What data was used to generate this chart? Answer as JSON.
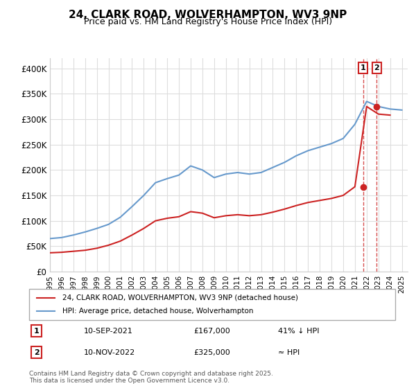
{
  "title": "24, CLARK ROAD, WOLVERHAMPTON, WV3 9NP",
  "subtitle": "Price paid vs. HM Land Registry's House Price Index (HPI)",
  "ylabel_ticks": [
    "£0",
    "£50K",
    "£100K",
    "£150K",
    "£200K",
    "£250K",
    "£300K",
    "£350K",
    "£400K"
  ],
  "ylim": [
    0,
    420000
  ],
  "xlim_start": 1995,
  "xlim_end": 2025.5,
  "legend_line1": "24, CLARK ROAD, WOLVERHAMPTON, WV3 9NP (detached house)",
  "legend_line2": "HPI: Average price, detached house, Wolverhampton",
  "transaction1_date": "10-SEP-2021",
  "transaction1_price": "£167,000",
  "transaction1_note": "41% ↓ HPI",
  "transaction2_date": "10-NOV-2022",
  "transaction2_price": "£325,000",
  "transaction2_note": "≈ HPI",
  "footnote": "Contains HM Land Registry data © Crown copyright and database right 2025.\nThis data is licensed under the Open Government Licence v3.0.",
  "hpi_color": "#6699cc",
  "price_color": "#cc2222",
  "marker1_color": "#cc2222",
  "marker2_color": "#cc2222",
  "vline_color": "#cc2222",
  "label1_bg": "#ffffff",
  "label2_bg": "#ffffff",
  "box_color": "#cc2222",
  "grid_color": "#dddddd",
  "background_color": "#ffffff",
  "hpi_years": [
    1995,
    1996,
    1997,
    1998,
    1999,
    2000,
    2001,
    2002,
    2003,
    2004,
    2005,
    2006,
    2007,
    2008,
    2009,
    2010,
    2011,
    2012,
    2013,
    2014,
    2015,
    2016,
    2017,
    2018,
    2019,
    2020,
    2021,
    2022,
    2023,
    2024,
    2025
  ],
  "hpi_values": [
    65000,
    67000,
    72000,
    78000,
    85000,
    93000,
    107000,
    128000,
    150000,
    175000,
    183000,
    190000,
    208000,
    200000,
    185000,
    192000,
    195000,
    192000,
    195000,
    205000,
    215000,
    228000,
    238000,
    245000,
    252000,
    262000,
    290000,
    335000,
    325000,
    320000,
    318000
  ],
  "price_years": [
    1995,
    1996,
    1997,
    1998,
    1999,
    2000,
    2001,
    2002,
    2003,
    2004,
    2005,
    2006,
    2007,
    2008,
    2009,
    2010,
    2011,
    2012,
    2013,
    2014,
    2015,
    2016,
    2017,
    2018,
    2019,
    2020,
    2021,
    2022,
    2023,
    2024
  ],
  "price_values": [
    37000,
    38000,
    40000,
    42000,
    46000,
    52000,
    60000,
    72000,
    85000,
    100000,
    105000,
    108000,
    118000,
    115000,
    106000,
    110000,
    112000,
    110000,
    112000,
    117000,
    123000,
    130000,
    136000,
    140000,
    144000,
    150000,
    167000,
    325000,
    310000,
    308000
  ],
  "transaction1_x": 2021.7,
  "transaction2_x": 2022.85
}
